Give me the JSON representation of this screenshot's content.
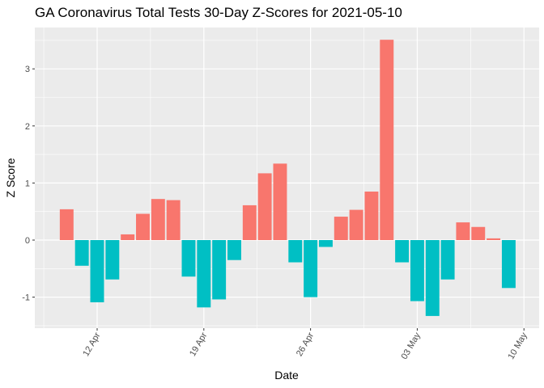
{
  "chart_data": {
    "type": "bar",
    "title": "GA Coronavirus Total Tests 30-Day Z-Scores for 2021-05-10",
    "xlabel": "Date",
    "ylabel": "Z Score",
    "x_axis_type": "date",
    "xlim": [
      "2021-04-08",
      "2021-05-10"
    ],
    "ylim": [
      -1.5,
      3.6
    ],
    "yticks": [
      -1,
      0,
      1,
      2,
      3
    ],
    "ytick_labels": [
      "-1",
      "0",
      "1",
      "2",
      "3"
    ],
    "xticks": [
      "2021-04-12",
      "2021-04-19",
      "2021-04-26",
      "2021-05-03",
      "2021-05-10"
    ],
    "xtick_labels": [
      "12 Apr",
      "19 Apr",
      "26 Apr",
      "03 May",
      "10 May"
    ],
    "grid": true,
    "legend": "none",
    "colors": {
      "positive": "#F8766D",
      "negative": "#00BFC4",
      "panel": "#EBEBEB",
      "grid": "#FFFFFF"
    },
    "x": [
      "2021-04-10",
      "2021-04-11",
      "2021-04-12",
      "2021-04-13",
      "2021-04-14",
      "2021-04-15",
      "2021-04-16",
      "2021-04-17",
      "2021-04-18",
      "2021-04-19",
      "2021-04-20",
      "2021-04-21",
      "2021-04-22",
      "2021-04-23",
      "2021-04-24",
      "2021-04-25",
      "2021-04-26",
      "2021-04-27",
      "2021-04-28",
      "2021-04-29",
      "2021-04-30",
      "2021-05-01",
      "2021-05-02",
      "2021-05-03",
      "2021-05-04",
      "2021-05-05",
      "2021-05-06",
      "2021-05-07",
      "2021-05-08",
      "2021-05-09"
    ],
    "values": [
      0.54,
      -0.45,
      -1.09,
      -0.69,
      0.1,
      0.46,
      0.72,
      0.7,
      -0.64,
      -1.18,
      -1.04,
      -0.35,
      0.61,
      1.17,
      1.34,
      -0.39,
      -1.0,
      -0.12,
      0.41,
      0.53,
      0.85,
      3.51,
      -0.39,
      -1.07,
      -1.33,
      -0.69,
      0.31,
      0.23,
      0.03,
      -0.84
    ]
  }
}
